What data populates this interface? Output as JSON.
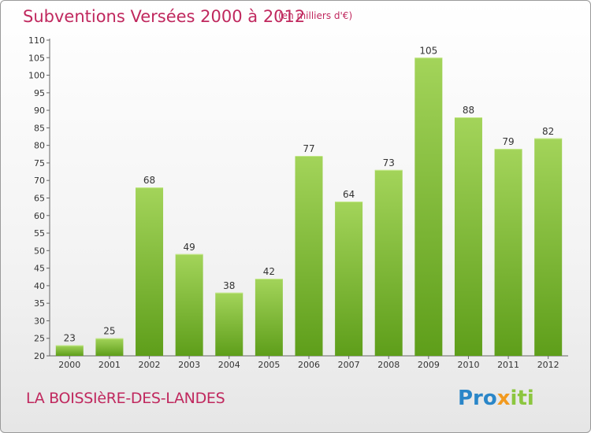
{
  "header": {
    "title": "Subventions Versées 2000 à 2012",
    "subtitle": "(en milliers d'€)"
  },
  "footer": {
    "place": "LA BOISSIèRE-DES-LANDES",
    "logo_parts": [
      "Pro",
      "x",
      "iti"
    ]
  },
  "colors": {
    "title": "#c0285e",
    "bar_light": "#a3d45a",
    "bar_dark": "#5e9e1a",
    "logo_blue": "#2a86c8",
    "logo_orange": "#f29a1f",
    "logo_green": "#8cc63f"
  },
  "chart_data": {
    "type": "bar",
    "title": "Subventions Versées 2000 à 2012",
    "subtitle": "(en milliers d'€)",
    "xlabel": "",
    "ylabel": "",
    "categories": [
      "2000",
      "2001",
      "2002",
      "2003",
      "2004",
      "2005",
      "2006",
      "2007",
      "2008",
      "2009",
      "2010",
      "2011",
      "2012"
    ],
    "values": [
      23,
      25,
      68,
      49,
      38,
      42,
      77,
      64,
      73,
      105,
      88,
      79,
      82
    ],
    "ylim": [
      20,
      110
    ],
    "yticks": [
      20,
      25,
      30,
      35,
      40,
      45,
      50,
      55,
      60,
      65,
      70,
      75,
      80,
      85,
      90,
      95,
      100,
      105,
      110
    ],
    "grid": false,
    "legend": "none"
  }
}
